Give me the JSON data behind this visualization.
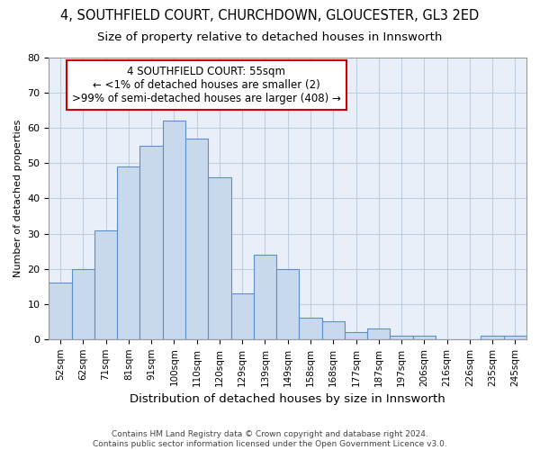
{
  "title1": "4, SOUTHFIELD COURT, CHURCHDOWN, GLOUCESTER, GL3 2ED",
  "title2": "Size of property relative to detached houses in Innsworth",
  "xlabel": "Distribution of detached houses by size in Innsworth",
  "ylabel": "Number of detached properties",
  "categories": [
    "52sqm",
    "62sqm",
    "71sqm",
    "81sqm",
    "91sqm",
    "100sqm",
    "110sqm",
    "120sqm",
    "129sqm",
    "139sqm",
    "149sqm",
    "158sqm",
    "168sqm",
    "177sqm",
    "187sqm",
    "197sqm",
    "206sqm",
    "216sqm",
    "226sqm",
    "235sqm",
    "245sqm"
  ],
  "values": [
    16,
    20,
    31,
    49,
    55,
    62,
    57,
    46,
    13,
    24,
    20,
    6,
    5,
    2,
    3,
    1,
    1,
    0,
    0,
    1,
    1
  ],
  "bar_color": "#c8d9ee",
  "bar_edge_color": "#5b8fca",
  "annotation_title": "4 SOUTHFIELD COURT: 55sqm",
  "annotation_line2": "← <1% of detached houses are smaller (2)",
  "annotation_line3": ">99% of semi-detached houses are larger (408) →",
  "annotation_box_color": "#ffffff",
  "annotation_border_color": "#cc0000",
  "ylim": [
    0,
    80
  ],
  "yticks": [
    0,
    10,
    20,
    30,
    40,
    50,
    60,
    70,
    80
  ],
  "grid_color": "#c0cfe0",
  "bg_color": "#e8eff8",
  "footer1": "Contains HM Land Registry data © Crown copyright and database right 2024.",
  "footer2": "Contains public sector information licensed under the Open Government Licence v3.0.",
  "title1_fontsize": 10.5,
  "title2_fontsize": 9.5,
  "xlabel_fontsize": 9.5,
  "ylabel_fontsize": 8,
  "annot_fontsize": 8.5,
  "footer_fontsize": 6.5
}
